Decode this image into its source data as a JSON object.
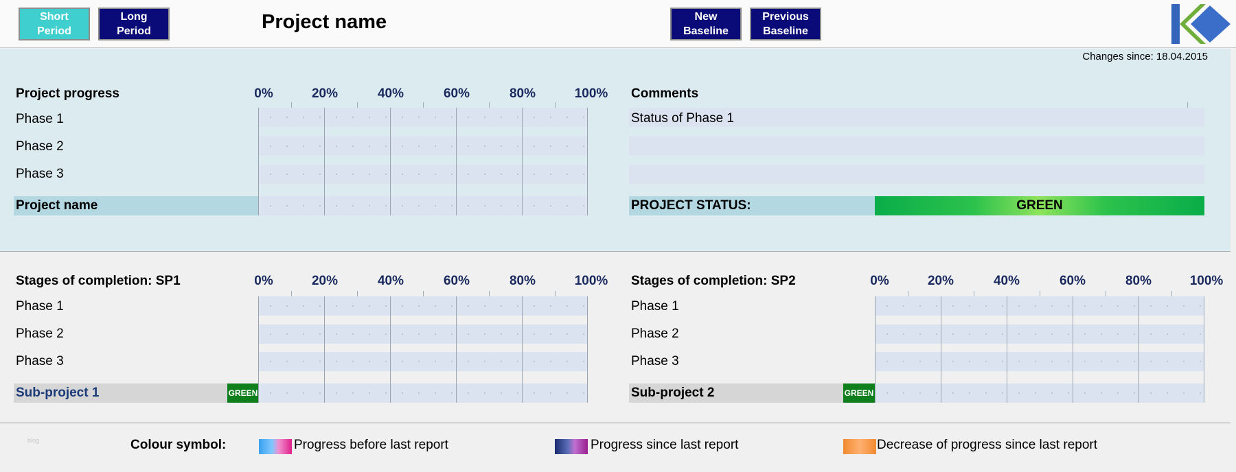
{
  "toolbar": {
    "short_period": "Short Period",
    "long_period": "Long Period",
    "new_baseline": "New Baseline",
    "previous_baseline": "Previous Baseline"
  },
  "title": "Project name",
  "changes_since": "Changes since: 18.04.2015",
  "ticks": [
    "0%",
    "20%",
    "40%",
    "60%",
    "80%",
    "100%"
  ],
  "project_progress": {
    "header": "Project progress",
    "phases": [
      "Phase 1",
      "Phase 2",
      "Phase 3"
    ],
    "total_label": "Project name"
  },
  "comments": {
    "header": "Comments",
    "lines": [
      "Status of Phase 1",
      "",
      ""
    ],
    "status_label": "PROJECT STATUS:",
    "status_value": "GREEN",
    "status_color": "#0aad4a"
  },
  "sp1": {
    "header": "Stages of completion: SP1",
    "phases": [
      "Phase 1",
      "Phase 2",
      "Phase 3"
    ],
    "total_label": "Sub-project 1",
    "status": "GREEN"
  },
  "sp2": {
    "header": "Stages of completion: SP2",
    "phases": [
      "Phase 1",
      "Phase 2",
      "Phase 3"
    ],
    "total_label": "Sub-project 2",
    "status": "GREEN"
  },
  "legend": {
    "title": "Colour symbol:",
    "items": [
      "Progress before last report",
      "Progress since last report",
      "Decrease of progress since last report"
    ]
  },
  "footer_small": "blog"
}
